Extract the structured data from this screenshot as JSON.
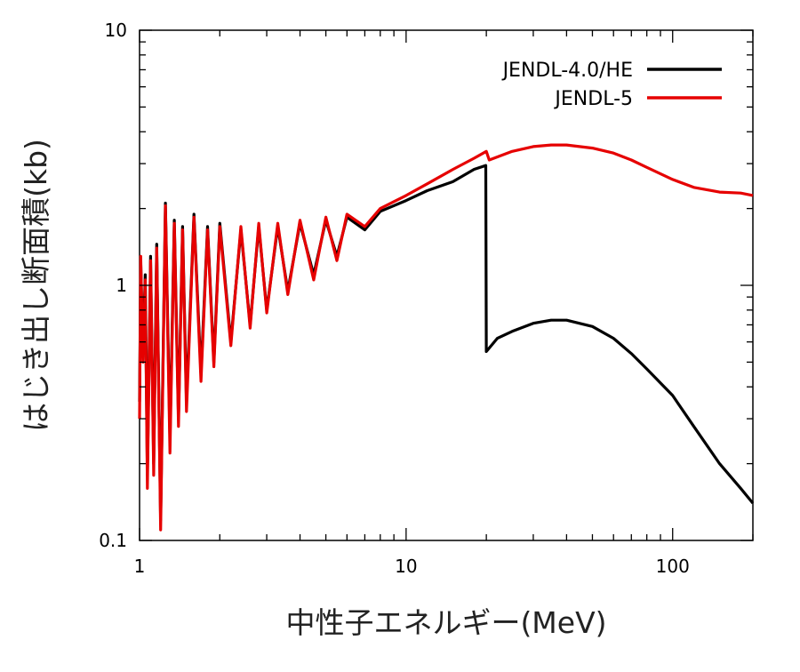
{
  "chart_data": {
    "type": "line",
    "title": "",
    "xlabel": "中性子エネルギー(MeV)",
    "ylabel": "はじき出し断面積(kb)",
    "x_scale": "log",
    "y_scale": "log",
    "xlim": [
      1,
      200
    ],
    "ylim": [
      0.1,
      10
    ],
    "x_ticks": [
      {
        "value": 1,
        "label": "1"
      },
      {
        "value": 10,
        "label": "10"
      },
      {
        "value": 100,
        "label": "100"
      }
    ],
    "y_ticks": [
      {
        "value": 0.1,
        "label": "0.1"
      },
      {
        "value": 1,
        "label": "1"
      },
      {
        "value": 10,
        "label": "10"
      }
    ],
    "grid": false,
    "legend_position": "top-right",
    "series": [
      {
        "name": "JENDL-4.0/HE",
        "color": "#000000",
        "points": [
          [
            1.0,
            0.35
          ],
          [
            1.01,
            1.25
          ],
          [
            1.03,
            0.55
          ],
          [
            1.05,
            1.1
          ],
          [
            1.07,
            0.18
          ],
          [
            1.1,
            1.3
          ],
          [
            1.13,
            0.2
          ],
          [
            1.16,
            1.45
          ],
          [
            1.2,
            0.12
          ],
          [
            1.25,
            2.1
          ],
          [
            1.3,
            0.25
          ],
          [
            1.35,
            1.8
          ],
          [
            1.4,
            0.3
          ],
          [
            1.45,
            1.7
          ],
          [
            1.5,
            0.35
          ],
          [
            1.6,
            1.9
          ],
          [
            1.7,
            0.45
          ],
          [
            1.8,
            1.7
          ],
          [
            1.9,
            0.5
          ],
          [
            2.0,
            1.75
          ],
          [
            2.2,
            0.6
          ],
          [
            2.4,
            1.65
          ],
          [
            2.6,
            0.7
          ],
          [
            2.8,
            1.7
          ],
          [
            3.0,
            0.8
          ],
          [
            3.3,
            1.7
          ],
          [
            3.6,
            0.95
          ],
          [
            4.0,
            1.75
          ],
          [
            4.5,
            1.1
          ],
          [
            5.0,
            1.8
          ],
          [
            5.5,
            1.3
          ],
          [
            6.0,
            1.85
          ],
          [
            7.0,
            1.65
          ],
          [
            8.0,
            1.95
          ],
          [
            10.0,
            2.15
          ],
          [
            12.0,
            2.35
          ],
          [
            15.0,
            2.55
          ],
          [
            18.0,
            2.85
          ],
          [
            19.9,
            2.95
          ],
          [
            20.0,
            0.55
          ],
          [
            22.0,
            0.62
          ],
          [
            25.0,
            0.66
          ],
          [
            30.0,
            0.71
          ],
          [
            35.0,
            0.73
          ],
          [
            40.0,
            0.73
          ],
          [
            50.0,
            0.69
          ],
          [
            60.0,
            0.62
          ],
          [
            70.0,
            0.54
          ],
          [
            80.0,
            0.47
          ],
          [
            100.0,
            0.37
          ],
          [
            120.0,
            0.28
          ],
          [
            150.0,
            0.2
          ],
          [
            180.0,
            0.16
          ],
          [
            200.0,
            0.14
          ]
        ]
      },
      {
        "name": "JENDL-5",
        "color": "#e60000",
        "points": [
          [
            1.0,
            0.3
          ],
          [
            1.01,
            1.3
          ],
          [
            1.03,
            0.5
          ],
          [
            1.05,
            1.05
          ],
          [
            1.07,
            0.16
          ],
          [
            1.1,
            1.25
          ],
          [
            1.13,
            0.18
          ],
          [
            1.16,
            1.4
          ],
          [
            1.2,
            0.11
          ],
          [
            1.25,
            2.05
          ],
          [
            1.3,
            0.22
          ],
          [
            1.35,
            1.75
          ],
          [
            1.4,
            0.28
          ],
          [
            1.45,
            1.65
          ],
          [
            1.5,
            0.32
          ],
          [
            1.6,
            1.85
          ],
          [
            1.7,
            0.42
          ],
          [
            1.8,
            1.65
          ],
          [
            1.9,
            0.48
          ],
          [
            2.0,
            1.7
          ],
          [
            2.2,
            0.58
          ],
          [
            2.4,
            1.7
          ],
          [
            2.6,
            0.68
          ],
          [
            2.8,
            1.75
          ],
          [
            3.0,
            0.78
          ],
          [
            3.3,
            1.75
          ],
          [
            3.6,
            0.92
          ],
          [
            4.0,
            1.8
          ],
          [
            4.5,
            1.05
          ],
          [
            5.0,
            1.85
          ],
          [
            5.5,
            1.25
          ],
          [
            6.0,
            1.9
          ],
          [
            7.0,
            1.7
          ],
          [
            8.0,
            2.0
          ],
          [
            10.0,
            2.25
          ],
          [
            12.0,
            2.5
          ],
          [
            15.0,
            2.85
          ],
          [
            18.0,
            3.15
          ],
          [
            20.0,
            3.35
          ],
          [
            20.5,
            3.1
          ],
          [
            25.0,
            3.35
          ],
          [
            30.0,
            3.5
          ],
          [
            35.0,
            3.55
          ],
          [
            40.0,
            3.55
          ],
          [
            50.0,
            3.45
          ],
          [
            60.0,
            3.3
          ],
          [
            70.0,
            3.1
          ],
          [
            80.0,
            2.9
          ],
          [
            100.0,
            2.6
          ],
          [
            120.0,
            2.42
          ],
          [
            150.0,
            2.32
          ],
          [
            180.0,
            2.3
          ],
          [
            200.0,
            2.25
          ]
        ]
      }
    ]
  }
}
